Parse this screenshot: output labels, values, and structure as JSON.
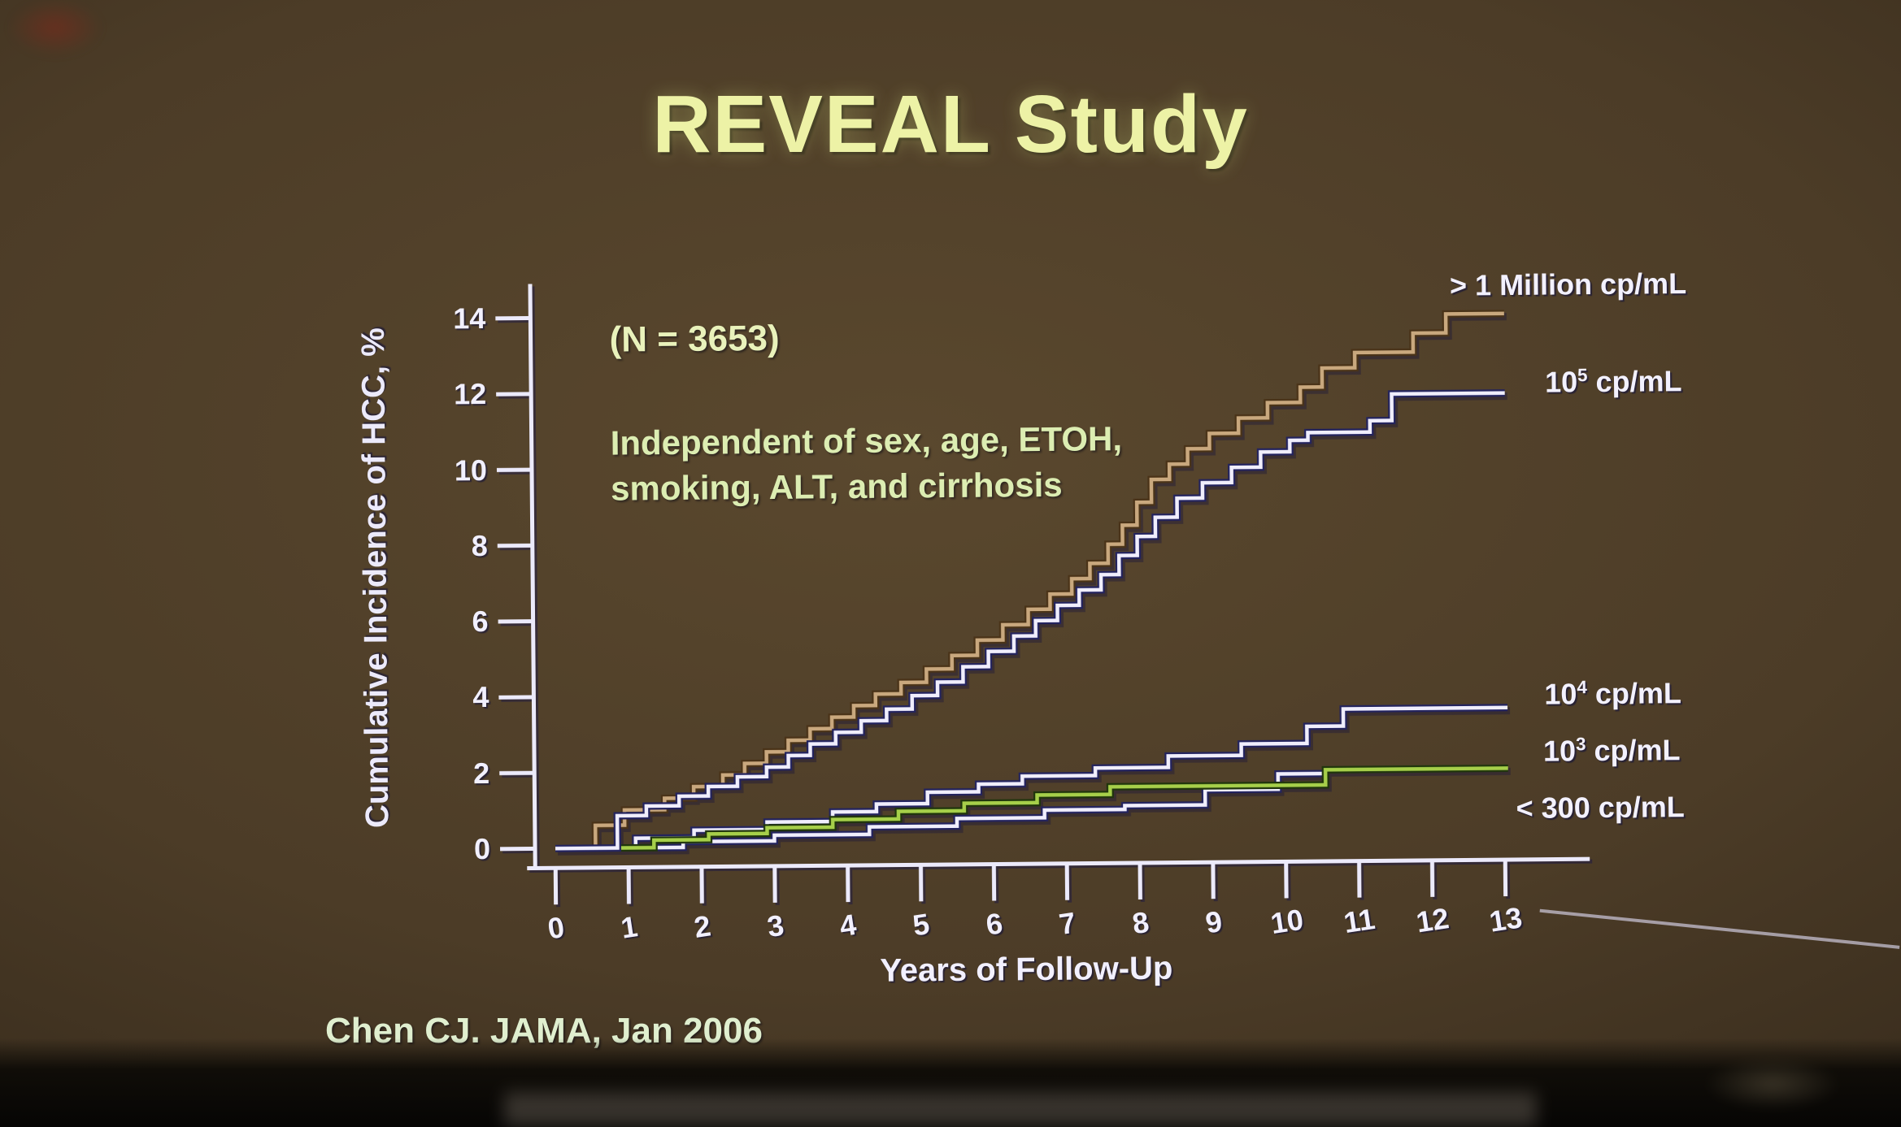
{
  "slide": {
    "title": "REVEAL Study",
    "sample_size_note": "(N = 3653)",
    "independence_note_line1": "Independent of sex, age, ETOH,",
    "independence_note_line2": "smoking, ALT, and cirrhosis",
    "citation": "Chen CJ.  JAMA, Jan 2006"
  },
  "colors": {
    "background": "#4c3c27",
    "title_text": "#edf2a6",
    "annotation_text": "#dcedb2",
    "axis": "#eceafb",
    "tick_text": "#f2f0ff",
    "legend_text": "#f3f1ff",
    "citation_text": "#e0efcf",
    "curve_gt1million": "#c9a87e",
    "curve_white": "#f0eefd",
    "curve_green": "#a6cf4a"
  },
  "chart_data": {
    "type": "line",
    "subtype": "step-cumulative-incidence",
    "title": "REVEAL Study",
    "xlabel": "Years of Follow-Up",
    "ylabel": "Cumulative Incidence of HCC, %",
    "xlim": [
      0,
      13
    ],
    "ylim": [
      0,
      14
    ],
    "x_ticks": [
      0,
      1,
      2,
      3,
      4,
      5,
      6,
      7,
      8,
      9,
      10,
      11,
      12,
      13
    ],
    "y_ticks": [
      0,
      2,
      4,
      6,
      8,
      10,
      12,
      14
    ],
    "grid": false,
    "legend_position": "right of curve ends",
    "series": [
      {
        "name": "> 1 Million cp/mL",
        "label_pre": "> 1 Million",
        "label_sup": "",
        "label_post": " cp/mL",
        "color": "#c9a87e",
        "outline": "#4a3318",
        "final_value_pct": 13.9,
        "end_year": 13.05,
        "points": [
          [
            0,
            0
          ],
          [
            0.55,
            0.6
          ],
          [
            0.95,
            1.0
          ],
          [
            1.5,
            1.3
          ],
          [
            1.9,
            1.6
          ],
          [
            2.3,
            1.9
          ],
          [
            2.6,
            2.2
          ],
          [
            2.9,
            2.5
          ],
          [
            3.2,
            2.8
          ],
          [
            3.5,
            3.1
          ],
          [
            3.8,
            3.4
          ],
          [
            4.1,
            3.7
          ],
          [
            4.4,
            4.0
          ],
          [
            4.75,
            4.3
          ],
          [
            5.1,
            4.65
          ],
          [
            5.45,
            5.0
          ],
          [
            5.8,
            5.4
          ],
          [
            6.15,
            5.8
          ],
          [
            6.5,
            6.2
          ],
          [
            6.8,
            6.6
          ],
          [
            7.1,
            7.0
          ],
          [
            7.35,
            7.4
          ],
          [
            7.6,
            7.9
          ],
          [
            7.8,
            8.4
          ],
          [
            8.0,
            9.0
          ],
          [
            8.2,
            9.6
          ],
          [
            8.45,
            10.0
          ],
          [
            8.7,
            10.4
          ],
          [
            9.0,
            10.8
          ],
          [
            9.4,
            11.2
          ],
          [
            9.8,
            11.6
          ],
          [
            10.25,
            12.0
          ],
          [
            10.55,
            12.5
          ],
          [
            11.0,
            12.9
          ],
          [
            11.8,
            13.4
          ],
          [
            12.25,
            13.9
          ],
          [
            13.05,
            13.9
          ]
        ]
      },
      {
        "name": "10^5 cp/mL",
        "label_pre": "10",
        "label_sup": "5",
        "label_post": " cp/mL",
        "color": "#f0eefd",
        "outline": "#23235e",
        "final_value_pct": 11.8,
        "end_year": 13.05,
        "points": [
          [
            0,
            0
          ],
          [
            0.85,
            0.85
          ],
          [
            1.25,
            1.1
          ],
          [
            1.7,
            1.35
          ],
          [
            2.1,
            1.6
          ],
          [
            2.5,
            1.85
          ],
          [
            2.9,
            2.1
          ],
          [
            3.2,
            2.4
          ],
          [
            3.5,
            2.7
          ],
          [
            3.85,
            3.0
          ],
          [
            4.2,
            3.3
          ],
          [
            4.55,
            3.6
          ],
          [
            4.9,
            3.95
          ],
          [
            5.25,
            4.3
          ],
          [
            5.6,
            4.7
          ],
          [
            5.95,
            5.1
          ],
          [
            6.3,
            5.5
          ],
          [
            6.6,
            5.9
          ],
          [
            6.9,
            6.3
          ],
          [
            7.2,
            6.7
          ],
          [
            7.5,
            7.1
          ],
          [
            7.75,
            7.6
          ],
          [
            8.0,
            8.1
          ],
          [
            8.25,
            8.6
          ],
          [
            8.55,
            9.1
          ],
          [
            8.9,
            9.5
          ],
          [
            9.3,
            9.9
          ],
          [
            9.7,
            10.3
          ],
          [
            10.1,
            10.6
          ],
          [
            10.35,
            10.8
          ],
          [
            11.2,
            11.1
          ],
          [
            11.5,
            11.8
          ],
          [
            13.05,
            11.8
          ]
        ]
      },
      {
        "name": "10^4 cp/mL",
        "label_pre": "10",
        "label_sup": "4",
        "label_post": " cp/mL",
        "color": "#f0eefd",
        "outline": "#23235e",
        "final_value_pct": 3.5,
        "end_year": 13.05,
        "points": [
          [
            0,
            0
          ],
          [
            1.1,
            0.25
          ],
          [
            1.9,
            0.45
          ],
          [
            2.9,
            0.65
          ],
          [
            3.8,
            0.9
          ],
          [
            4.4,
            1.1
          ],
          [
            5.1,
            1.4
          ],
          [
            5.8,
            1.6
          ],
          [
            6.4,
            1.8
          ],
          [
            7.4,
            2.0
          ],
          [
            8.4,
            2.3
          ],
          [
            9.4,
            2.6
          ],
          [
            10.3,
            3.05
          ],
          [
            10.8,
            3.5
          ],
          [
            13.05,
            3.5
          ]
        ]
      },
      {
        "name": "10^3 cp/mL",
        "label_pre": "10",
        "label_sup": "3",
        "label_post": " cp/mL",
        "color": "#a6cf4a",
        "outline": "#20350c",
        "final_value_pct": 1.9,
        "end_year": 13.05,
        "points": [
          [
            0,
            0
          ],
          [
            1.35,
            0.2
          ],
          [
            2.1,
            0.35
          ],
          [
            2.9,
            0.5
          ],
          [
            3.8,
            0.7
          ],
          [
            4.7,
            0.9
          ],
          [
            5.6,
            1.1
          ],
          [
            6.6,
            1.3
          ],
          [
            7.6,
            1.5
          ],
          [
            10.55,
            1.9
          ],
          [
            13.05,
            1.9
          ]
        ]
      },
      {
        "name": "< 300 cp/mL",
        "label_pre": "< 300",
        "label_sup": "",
        "label_post": " cp/mL",
        "color": "#f0eefd",
        "outline": "#23235e",
        "final_value_pct": 1.8,
        "end_year": 10.55,
        "points": [
          [
            0,
            0
          ],
          [
            1.75,
            0.15
          ],
          [
            3.0,
            0.3
          ],
          [
            4.3,
            0.5
          ],
          [
            5.5,
            0.7
          ],
          [
            6.7,
            0.9
          ],
          [
            7.8,
            1.0
          ],
          [
            8.9,
            1.4
          ],
          [
            9.9,
            1.8
          ],
          [
            10.55,
            1.8
          ]
        ]
      }
    ]
  }
}
